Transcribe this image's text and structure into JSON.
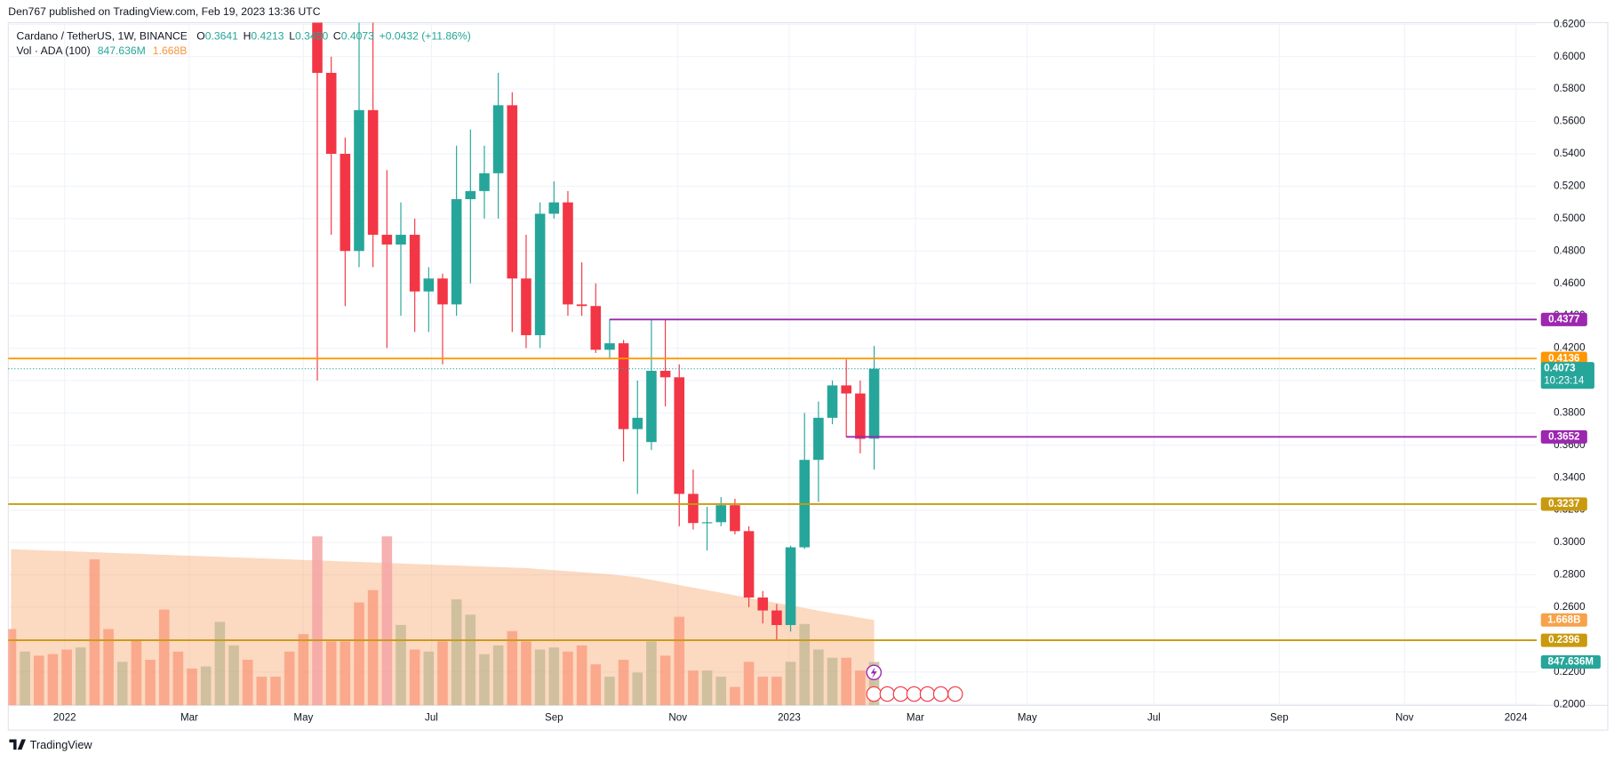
{
  "chart_data": {
    "type": "candlestick",
    "published": "Den767 published on TradingView.com, Feb 19, 2023 13:36 UTC",
    "title": "Cardano / TetherUS, 1W, BINANCE",
    "ohlc": [
      {
        "label": "O",
        "value": "0.3641"
      },
      {
        "label": "H",
        "value": "0.4213"
      },
      {
        "label": "L",
        "value": "0.3450"
      },
      {
        "label": "C",
        "value": "0.4073"
      }
    ],
    "change": "+0.0432 (+11.86%)",
    "volume_legend": {
      "label": "Vol · ADA (100)",
      "volume": "847.636M",
      "ma": "1.668B"
    },
    "countdown": "10:23:14",
    "brand": "TradingView",
    "up_color": "#26a69a",
    "down_color": "#f23645",
    "grid": true,
    "xlim": [
      -0.2,
      109.6
    ],
    "xticks": [
      {
        "value": 3.85,
        "label": "2022"
      },
      {
        "value": 12.8,
        "label": "Mar"
      },
      {
        "value": 21.0,
        "label": "May"
      },
      {
        "value": 30.2,
        "label": "Jul"
      },
      {
        "value": 39.0,
        "label": "Sep"
      },
      {
        "value": 47.9,
        "label": "Nov"
      },
      {
        "value": 55.9,
        "label": "2023"
      },
      {
        "value": 64.96,
        "label": "Mar"
      },
      {
        "value": 73.0,
        "label": "May"
      },
      {
        "value": 82.1,
        "label": "Jul"
      },
      {
        "value": 91.1,
        "label": "Sep"
      },
      {
        "value": 100.1,
        "label": "Nov"
      },
      {
        "value": 108.1,
        "label": "2024"
      }
    ],
    "ylim": [
      0.1994,
      0.621
    ],
    "yticks": [
      {
        "value": 0.2,
        "label": "0.2000"
      },
      {
        "value": 0.22,
        "label": "0.2200"
      },
      {
        "value": 0.24,
        "label": "0.2400"
      },
      {
        "value": 0.26,
        "label": "0.2600"
      },
      {
        "value": 0.28,
        "label": "0.2800"
      },
      {
        "value": 0.3,
        "label": "0.3000"
      },
      {
        "value": 0.32,
        "label": "0.3200"
      },
      {
        "value": 0.34,
        "label": "0.3400"
      },
      {
        "value": 0.36,
        "label": "0.3600"
      },
      {
        "value": 0.38,
        "label": "0.3800"
      },
      {
        "value": 0.4,
        "label": "0.4000"
      },
      {
        "value": 0.42,
        "label": "0.4200"
      },
      {
        "value": 0.44,
        "label": "0.4400"
      },
      {
        "value": 0.46,
        "label": "0.4600"
      },
      {
        "value": 0.48,
        "label": "0.4800"
      },
      {
        "value": 0.5,
        "label": "0.5000"
      },
      {
        "value": 0.52,
        "label": "0.5200"
      },
      {
        "value": 0.54,
        "label": "0.5400"
      },
      {
        "value": 0.56,
        "label": "0.5600"
      },
      {
        "value": 0.58,
        "label": "0.5800"
      },
      {
        "value": 0.6,
        "label": "0.6000"
      },
      {
        "value": 0.62,
        "label": "0.6200"
      }
    ],
    "y2lim": [
      0,
      13330000000
    ],
    "open": [
      null,
      null,
      null,
      null,
      null,
      null,
      null,
      null,
      null,
      null,
      null,
      null,
      null,
      null,
      null,
      null,
      null,
      null,
      null,
      null,
      null,
      null,
      0.63,
      0.59,
      0.54,
      0.48,
      0.567,
      0.49,
      0.484,
      0.49,
      0.455,
      0.463,
      0.447,
      0.512,
      0.517,
      0.528,
      0.57,
      0.463,
      0.428,
      0.503,
      0.51,
      0.447,
      0.446,
      0.419,
      0.423,
      0.37,
      0.362,
      0.406,
      0.402,
      0.33,
      0.312,
      0.3125,
      0.323,
      0.307,
      0.266,
      0.258,
      0.249,
      0.297,
      0.351,
      0.377,
      0.397,
      0.392,
      0.3641
    ],
    "high": [
      null,
      null,
      null,
      null,
      null,
      null,
      null,
      null,
      null,
      null,
      null,
      null,
      null,
      null,
      null,
      null,
      null,
      null,
      null,
      null,
      null,
      null,
      0.64,
      0.6,
      0.55,
      0.63,
      0.64,
      0.53,
      0.51,
      0.5,
      0.47,
      0.466,
      0.545,
      0.555,
      0.545,
      0.59,
      0.578,
      0.49,
      0.51,
      0.523,
      0.517,
      0.473,
      0.46,
      0.438,
      0.425,
      0.4,
      0.438,
      0.438,
      0.41,
      0.345,
      0.322,
      0.328,
      0.327,
      0.31,
      0.27,
      0.262,
      0.298,
      0.38,
      0.387,
      0.4,
      0.413,
      0.4,
      0.4213
    ],
    "low": [
      null,
      null,
      null,
      null,
      null,
      null,
      null,
      null,
      null,
      null,
      null,
      null,
      null,
      null,
      null,
      null,
      null,
      null,
      null,
      null,
      null,
      null,
      0.4,
      0.49,
      0.446,
      0.47,
      0.47,
      0.42,
      0.44,
      0.43,
      0.43,
      0.41,
      0.44,
      0.46,
      0.5,
      0.5,
      0.43,
      0.42,
      0.42,
      0.5,
      0.44,
      0.44,
      0.417,
      0.414,
      0.35,
      0.33,
      0.357,
      0.384,
      0.31,
      0.308,
      0.295,
      0.31,
      0.305,
      0.26,
      0.25,
      0.24,
      0.245,
      0.296,
      0.325,
      0.373,
      0.365,
      0.355,
      0.345
    ],
    "close": [
      null,
      null,
      null,
      null,
      null,
      null,
      null,
      null,
      null,
      null,
      null,
      null,
      null,
      null,
      null,
      null,
      null,
      null,
      null,
      null,
      null,
      null,
      0.59,
      0.54,
      0.48,
      0.567,
      0.49,
      0.484,
      0.49,
      0.455,
      0.463,
      0.447,
      0.512,
      0.517,
      0.528,
      0.57,
      0.463,
      0.428,
      0.503,
      0.51,
      0.447,
      0.446,
      0.419,
      0.423,
      0.37,
      0.377,
      0.406,
      0.402,
      0.33,
      0.312,
      0.3125,
      0.323,
      0.307,
      0.266,
      0.258,
      0.249,
      0.297,
      0.351,
      0.377,
      0.397,
      0.392,
      0.364,
      0.4073
    ],
    "volume": [
      1490000000,
      1050000000,
      970000000,
      1000000000,
      1090000000,
      1130000000,
      2850000000,
      1490000000,
      850000000,
      1290000000,
      890000000,
      1870000000,
      1050000000,
      720000000,
      760000000,
      1630000000,
      1170000000,
      890000000,
      560000000,
      560000000,
      1050000000,
      1390000000,
      3300000000,
      1250000000,
      1250000000,
      2010000000,
      2250000000,
      3300000000,
      1570000000,
      1090000000,
      1050000000,
      1250000000,
      2070000000,
      1770000000,
      1000000000,
      1170000000,
      1450000000,
      1250000000,
      1090000000,
      1130000000,
      1050000000,
      1170000000,
      800000000,
      560000000,
      890000000,
      640000000,
      1250000000,
      970000000,
      1730000000,
      680000000,
      680000000,
      560000000,
      360000000,
      850000000,
      560000000,
      560000000,
      850000000,
      1590000000,
      1090000000,
      930000000,
      930000000,
      680000000,
      847636000
    ],
    "volume_colors": [
      "#f9a083",
      "#c8bb98",
      "#f9a083",
      "#f9a083",
      "#f9a083",
      "#c8bb98",
      "#f9a083",
      "#f9a083",
      "#c8bb98",
      "#f9a083",
      "#f9a083",
      "#f9a083",
      "#f9a083",
      "#f9a083",
      "#c8bb98",
      "#c8bb98",
      "#c8bb98",
      "#f9a083",
      "#f9a083",
      "#f9a083",
      "#f9a083",
      "#f9a083",
      "#f4a3a3",
      "#f9a083",
      "#f9a083",
      "#f9a083",
      "#f9a083",
      "#f4a3a3",
      "#c8bb98",
      "#f9a083",
      "#c8bb98",
      "#f9a083",
      "#c8bb98",
      "#c8bb98",
      "#c8bb98",
      "#c8bb98",
      "#f9a083",
      "#f9a083",
      "#c8bb98",
      "#c8bb98",
      "#f9a083",
      "#f9a083",
      "#f9a083",
      "#c8bb98",
      "#f9a083",
      "#c8bb98",
      "#c8bb98",
      "#f9a083",
      "#f9a083",
      "#f9a083",
      "#c8bb98",
      "#c8bb98",
      "#f9a083",
      "#f9a083",
      "#f9a083",
      "#f9a083",
      "#c8bb98",
      "#c8bb98",
      "#c8bb98",
      "#c8bb98",
      "#f9a083",
      "#f9a083",
      "#c8bb98"
    ],
    "volume_ma": [
      3050000000,
      3040000000,
      3030000000,
      3020000000,
      3010000000,
      3000000000,
      2990000000,
      2980000000,
      2970000000,
      2960000000,
      2950000000,
      2940000000,
      2930000000,
      2920000000,
      2910000000,
      2900000000,
      2890000000,
      2880000000,
      2870000000,
      2860000000,
      2850000000,
      2840000000,
      2830000000,
      2820000000,
      2810000000,
      2800000000,
      2790000000,
      2780000000,
      2770000000,
      2760000000,
      2750000000,
      2740000000,
      2730000000,
      2720000000,
      2710000000,
      2700000000,
      2690000000,
      2680000000,
      2660000000,
      2640000000,
      2620000000,
      2600000000,
      2580000000,
      2560000000,
      2530000000,
      2500000000,
      2450000000,
      2400000000,
      2350000000,
      2300000000,
      2250000000,
      2200000000,
      2150000000,
      2100000000,
      2050000000,
      2000000000,
      1950000000,
      1900000000,
      1850000000,
      1800000000,
      1760000000,
      1710000000,
      1668000000
    ],
    "volume_ma_color": "#f9a46b",
    "price_lines": [
      {
        "value": 0.4377,
        "label": "0.4377",
        "color": "#9c27b0",
        "start": 43
      },
      {
        "value": 0.4136,
        "label": "0.4136",
        "color": "#ff9800",
        "start": null
      },
      {
        "value": 0.3652,
        "label": "0.3652",
        "color": "#9c27b0",
        "start": 60
      },
      {
        "value": 0.3237,
        "label": "0.3237",
        "color": "#c99a0f",
        "start": null
      },
      {
        "value": 0.2396,
        "label": "0.2396",
        "color": "#c99a0f",
        "start": null
      }
    ]
  }
}
